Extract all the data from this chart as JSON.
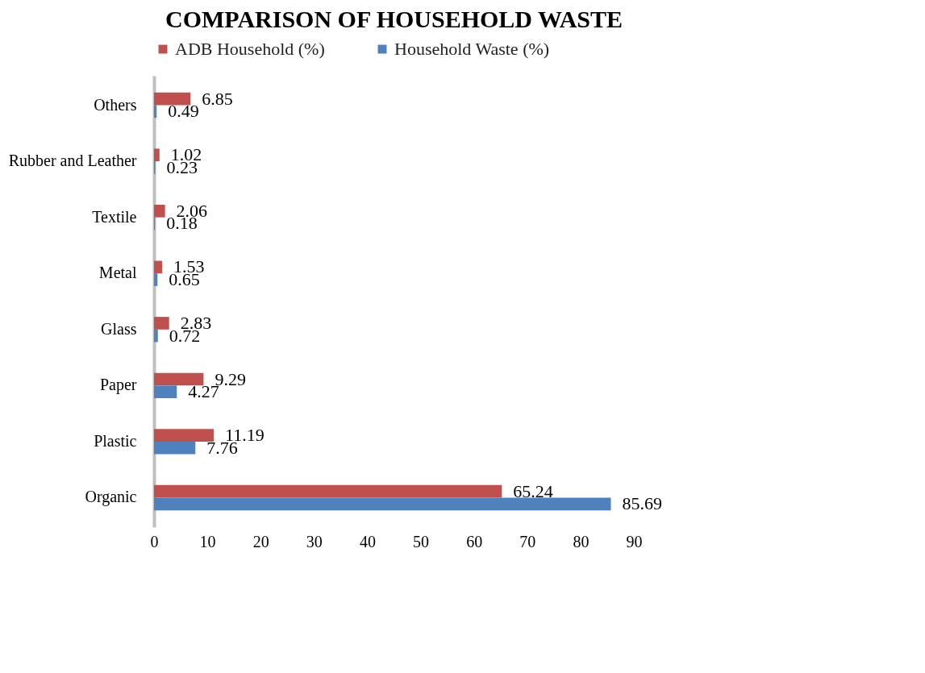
{
  "chart_data": {
    "type": "bar",
    "orientation": "horizontal",
    "title": "COMPARISON OF HOUSEHOLD WASTE",
    "categories": [
      "Others",
      "Rubber and Leather",
      "Textile",
      "Metal",
      "Glass",
      "Paper",
      "Plastic",
      "Organic"
    ],
    "series": [
      {
        "name": "ADB Household (%)",
        "color": "#c0504d",
        "values": [
          6.85,
          1.02,
          2.06,
          1.53,
          2.83,
          9.29,
          11.19,
          65.24
        ]
      },
      {
        "name": "Household Waste (%)",
        "color": "#4f81bd",
        "values": [
          0.49,
          0.23,
          0.18,
          0.65,
          0.72,
          4.27,
          7.76,
          85.69
        ]
      }
    ],
    "xlim": [
      0,
      90
    ],
    "xticks": [
      0,
      10,
      20,
      30,
      40,
      50,
      60,
      70,
      80,
      90
    ],
    "grid": false,
    "legend": "top",
    "data_labels": true
  }
}
